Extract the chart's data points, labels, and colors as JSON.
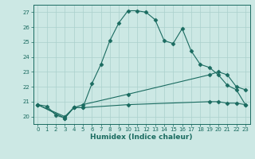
{
  "xlabel": "Humidex (Indice chaleur)",
  "background_color": "#cce8e4",
  "grid_color": "#aad0cc",
  "line_color": "#1a6b60",
  "xlim": [
    -0.5,
    23.5
  ],
  "ylim": [
    19.5,
    27.5
  ],
  "xticks": [
    0,
    1,
    2,
    3,
    4,
    5,
    6,
    7,
    8,
    9,
    10,
    11,
    12,
    13,
    14,
    15,
    16,
    17,
    18,
    19,
    20,
    21,
    22,
    23
  ],
  "yticks": [
    20,
    21,
    22,
    23,
    24,
    25,
    26,
    27
  ],
  "series": [
    {
      "x": [
        0,
        1,
        2,
        3,
        4,
        5,
        6,
        7,
        8,
        9,
        10,
        11,
        12,
        13,
        14,
        15,
        16,
        17,
        18,
        19,
        20,
        21,
        22,
        23
      ],
      "y": [
        20.8,
        20.7,
        20.1,
        19.9,
        20.6,
        20.6,
        22.2,
        23.5,
        25.1,
        26.3,
        27.1,
        27.1,
        27.0,
        26.5,
        25.1,
        24.9,
        25.9,
        24.4,
        23.5,
        23.3,
        22.8,
        22.1,
        21.8,
        20.8
      ]
    },
    {
      "x": [
        0,
        3,
        4,
        5,
        10,
        19,
        20,
        21,
        22,
        23
      ],
      "y": [
        20.8,
        20.0,
        20.6,
        20.8,
        21.5,
        22.8,
        23.0,
        22.8,
        22.0,
        21.8
      ]
    },
    {
      "x": [
        0,
        3,
        4,
        5,
        10,
        19,
        20,
        21,
        22,
        23
      ],
      "y": [
        20.8,
        19.9,
        20.6,
        20.6,
        20.8,
        21.0,
        21.0,
        20.9,
        20.9,
        20.8
      ]
    }
  ]
}
